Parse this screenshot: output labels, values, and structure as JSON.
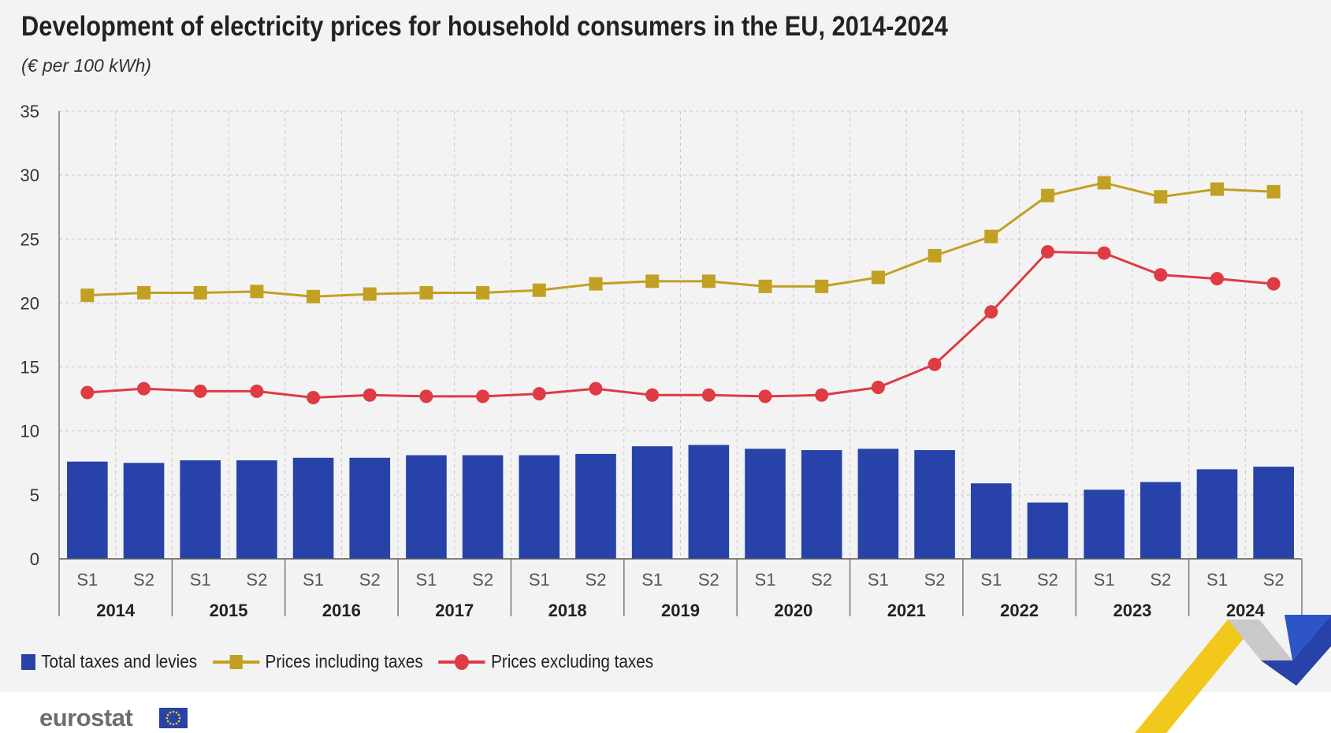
{
  "title": "Development of electricity prices for household consumers in the EU, 2014-2024",
  "subtitle": "(€ per 100 kWh)",
  "brand": "eurostat",
  "colors": {
    "bars": "#2742a8",
    "prices_including_taxes": "#c2a024",
    "prices_excluding_taxes": "#de3b44",
    "panel": "#f3f3f3",
    "gridline": "#c8c8c8"
  },
  "chart_data": {
    "type": "bar",
    "ylim": [
      0,
      35
    ],
    "yticks": [
      0,
      5,
      10,
      15,
      20,
      25,
      30,
      35
    ],
    "grid": true,
    "legend_position": "bottom-left",
    "years": [
      "2014",
      "2015",
      "2016",
      "2017",
      "2018",
      "2019",
      "2020",
      "2021",
      "2022",
      "2023",
      "2024"
    ],
    "semesters": [
      "S1",
      "S2"
    ],
    "categories": [
      "S1",
      "S2",
      "S1",
      "S2",
      "S1",
      "S2",
      "S1",
      "S2",
      "S1",
      "S2",
      "S1",
      "S2",
      "S1",
      "S2",
      "S1",
      "S2",
      "S1",
      "S2",
      "S1",
      "S2",
      "S1",
      "S2"
    ],
    "series": [
      {
        "name": "Total taxes and levies",
        "kind": "bar",
        "values": [
          7.6,
          7.5,
          7.7,
          7.7,
          7.9,
          7.9,
          8.1,
          8.1,
          8.1,
          8.2,
          8.8,
          8.9,
          8.6,
          8.5,
          8.6,
          8.5,
          5.9,
          4.4,
          5.4,
          6.0,
          7.0,
          7.2
        ]
      },
      {
        "name": "Prices including taxes",
        "kind": "line",
        "marker": "square",
        "values": [
          20.6,
          20.8,
          20.8,
          20.9,
          20.5,
          20.7,
          20.8,
          20.8,
          21.0,
          21.5,
          21.7,
          21.7,
          21.3,
          21.3,
          22.0,
          23.7,
          25.2,
          28.4,
          29.4,
          28.3,
          28.9,
          28.7
        ]
      },
      {
        "name": "Prices excluding taxes",
        "kind": "line",
        "marker": "circle",
        "values": [
          13.0,
          13.3,
          13.1,
          13.1,
          12.6,
          12.8,
          12.7,
          12.7,
          12.9,
          13.3,
          12.8,
          12.8,
          12.7,
          12.8,
          13.4,
          15.2,
          19.3,
          24.0,
          23.9,
          22.2,
          21.9,
          21.5
        ]
      }
    ]
  }
}
